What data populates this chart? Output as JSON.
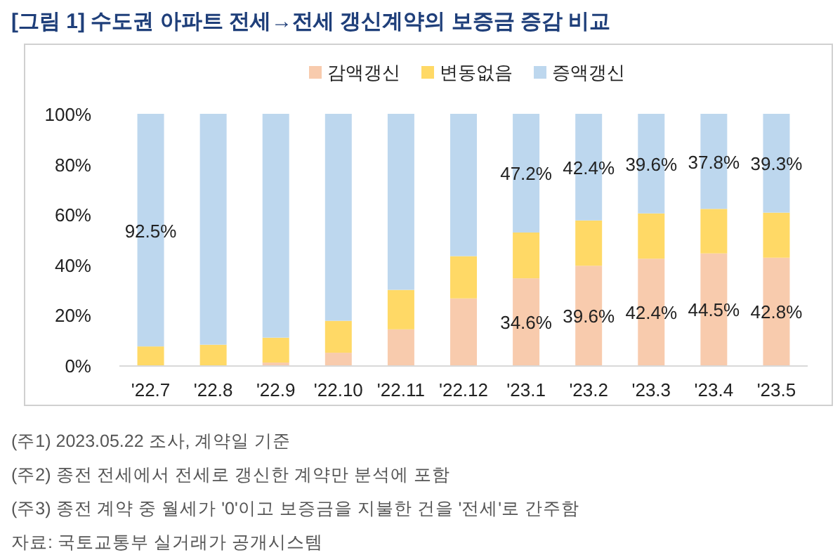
{
  "chart_data": {
    "type": "bar",
    "stacked": true,
    "title": "[그림 1] 수도권 아파트 전세→전세 갱신계약의 보증금 증감 비교",
    "categories": [
      "'22.7",
      "'22.8",
      "'22.9",
      "'22.10",
      "'22.11",
      "'22.12",
      "'23.1",
      "'23.2",
      "'23.3",
      "'23.4",
      "'23.5"
    ],
    "series": [
      {
        "name": "감액갱신",
        "color": "#f8cbad",
        "values": [
          0,
          0,
          1.1,
          5.0,
          14.3,
          26.6,
          34.6,
          39.6,
          42.4,
          44.5,
          42.8
        ],
        "value_labels": [
          null,
          null,
          null,
          null,
          null,
          null,
          "34.6%",
          "39.6%",
          "42.4%",
          "44.5%",
          "42.8%"
        ]
      },
      {
        "name": "변동없음",
        "color": "#ffd966",
        "values": [
          7.5,
          8.2,
          9.9,
          12.7,
          15.7,
          16.8,
          18.2,
          18.0,
          18.0,
          17.7,
          17.9
        ]
      },
      {
        "name": "증액갱신",
        "color": "#bdd7ee",
        "values": [
          92.5,
          91.8,
          89.0,
          82.3,
          70.0,
          56.6,
          47.2,
          42.4,
          39.6,
          37.8,
          39.3
        ],
        "value_labels": [
          "92.5%",
          null,
          null,
          null,
          null,
          null,
          "47.2%",
          "42.4%",
          "39.6%",
          "37.8%",
          "39.3%"
        ]
      }
    ],
    "ylim": [
      0,
      100
    ],
    "yticks": [
      {
        "value": 0,
        "label": "0%"
      },
      {
        "value": 20,
        "label": "20%"
      },
      {
        "value": 40,
        "label": "40%"
      },
      {
        "value": 60,
        "label": "60%"
      },
      {
        "value": 80,
        "label": "80%"
      },
      {
        "value": 100,
        "label": "100%"
      }
    ],
    "legend": "top",
    "annotations": [
      "(주1) 2023.05.22 조사, 계약일 기준",
      "(주2) 종전 전세에서 전세로 갱신한 계약만 분석에 포함",
      "(주3) 종전 계약 중 월세가 '0'이고 보증금을 지불한 건을 '전세'로 간주함",
      "자료: 국토교통부 실거래가 공개시스템"
    ]
  }
}
